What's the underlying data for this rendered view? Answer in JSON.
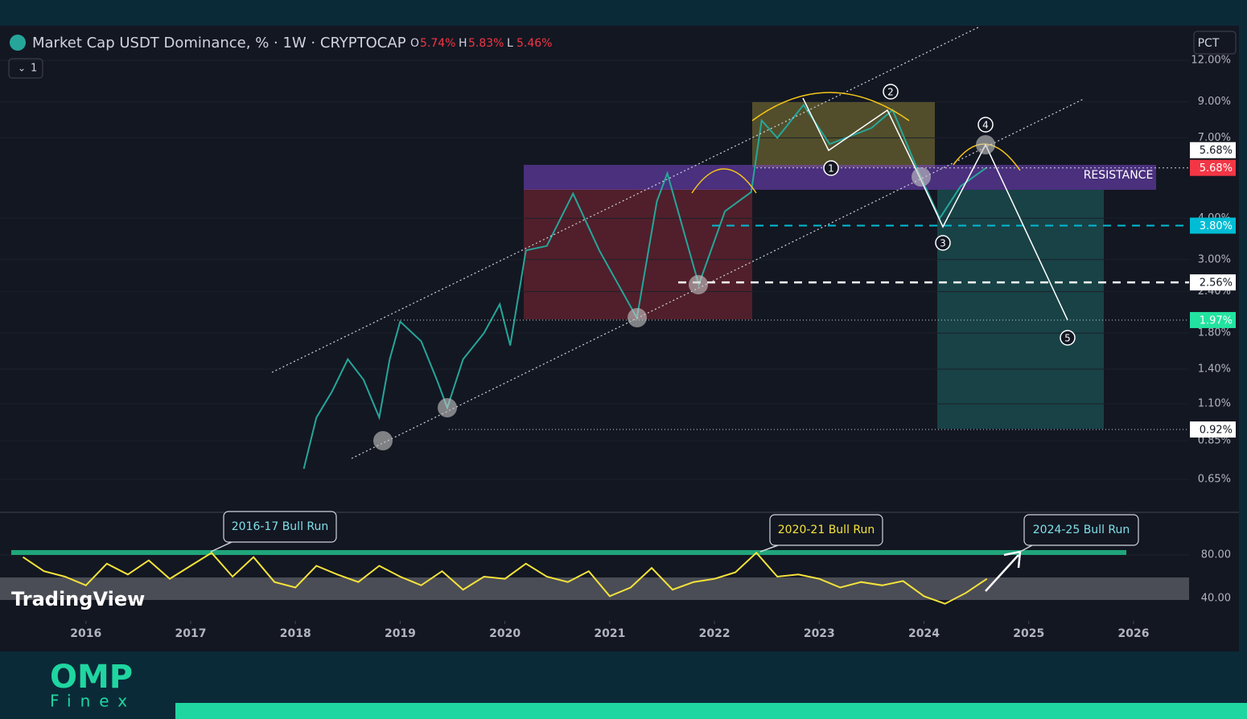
{
  "chart_data": [
    {
      "type": "line",
      "title": "Market Cap USDT Dominance, % · 1W · CRYPTOCAP",
      "ohlc": [
        [
          "O",
          "5.74%"
        ],
        [
          "H",
          "5.83%"
        ],
        [
          "L",
          "5.46%"
        ]
      ],
      "scale_button": "PCT",
      "pane_badge": "1",
      "yscale": "log",
      "color": "#26a69a",
      "x": [
        2018.08,
        2018.2,
        2018.35,
        2018.5,
        2018.65,
        2018.8,
        2018.9,
        2019.0,
        2019.2,
        2019.35,
        2019.45,
        2019.6,
        2019.8,
        2019.95,
        2020.05,
        2020.2,
        2020.4,
        2020.65,
        2020.9,
        2021.26,
        2021.45,
        2021.55,
        2021.85,
        2022.1,
        2022.35,
        2022.45,
        2022.6,
        2022.85,
        2023.1,
        2023.5,
        2023.7,
        2023.95,
        2024.15,
        2024.35,
        2024.6
      ],
      "values": [
        0.7,
        1.0,
        1.2,
        1.5,
        1.3,
        1.0,
        1.5,
        1.95,
        1.7,
        1.3,
        1.07,
        1.5,
        1.8,
        2.2,
        1.65,
        3.2,
        3.3,
        4.75,
        3.2,
        2.0,
        4.5,
        5.47,
        2.52,
        4.2,
        4.8,
        7.9,
        7.0,
        8.8,
        6.7,
        7.5,
        8.5,
        5.5,
        4.0,
        5.0,
        5.7
      ],
      "xlim": [
        2015.18,
        2026.53
      ],
      "xticks": [
        2016,
        2017,
        2018,
        2019,
        2020,
        2021,
        2022,
        2023,
        2024,
        2025,
        2026
      ],
      "ylim": [
        0.52,
        14.6
      ],
      "yticks": [
        {
          "value": 12,
          "label": "12.00%"
        },
        {
          "value": 9,
          "label": "9.00%"
        },
        {
          "value": 7,
          "label": "7.00%"
        },
        {
          "value": 4,
          "label": "4.00%"
        },
        {
          "value": 3,
          "label": "3.00%"
        },
        {
          "value": 2.4,
          "label": "2.40%"
        },
        {
          "value": 1.8,
          "label": "1.80%"
        },
        {
          "value": 1.4,
          "label": "1.40%"
        },
        {
          "value": 1.1,
          "label": "1.10%"
        },
        {
          "value": 0.85,
          "label": "0.85%"
        },
        {
          "value": 0.65,
          "label": "0.65%"
        }
      ],
      "last_price": {
        "value": 5.68,
        "label": "5.68%"
      },
      "levels": [
        {
          "value": 5.68,
          "label": "5.68%",
          "color": "#f23645"
        },
        {
          "value": 3.8,
          "label": "3.80%",
          "color": "#00bcd4"
        },
        {
          "value": 2.56,
          "label": "2.56%",
          "color": "#ffffff"
        },
        {
          "value": 1.97,
          "label": "1.97%",
          "color": "#22e3a0"
        },
        {
          "value": 0.92,
          "label": "0.92%",
          "color": "#ffffff"
        }
      ],
      "annotations": {
        "resistance": "RESISTANCE",
        "waves": [
          "1",
          "2",
          "3",
          "4",
          "5"
        ]
      }
    },
    {
      "type": "line",
      "color": "#f5e33b",
      "x": [
        2015.4,
        2015.6,
        2015.8,
        2016.0,
        2016.2,
        2016.4,
        2016.6,
        2016.8,
        2017.0,
        2017.2,
        2017.4,
        2017.6,
        2017.8,
        2018.0,
        2018.2,
        2018.4,
        2018.6,
        2018.8,
        2019.0,
        2019.2,
        2019.4,
        2019.6,
        2019.8,
        2020.0,
        2020.2,
        2020.4,
        2020.6,
        2020.8,
        2021.0,
        2021.2,
        2021.4,
        2021.6,
        2021.8,
        2022.0,
        2022.2,
        2022.4,
        2022.6,
        2022.8,
        2023.0,
        2023.2,
        2023.4,
        2023.6,
        2023.8,
        2024.0,
        2024.2,
        2024.4,
        2024.6
      ],
      "values": [
        78,
        65,
        60,
        52,
        72,
        62,
        75,
        58,
        70,
        82,
        60,
        78,
        55,
        50,
        70,
        62,
        55,
        70,
        60,
        52,
        65,
        48,
        60,
        58,
        72,
        60,
        55,
        65,
        42,
        50,
        68,
        48,
        55,
        58,
        64,
        82,
        60,
        62,
        58,
        50,
        55,
        52,
        56,
        42,
        35,
        45,
        58
      ],
      "xlim": [
        2015.18,
        2026.53
      ],
      "ylim": [
        20,
        117
      ],
      "yticks": [
        {
          "value": 80,
          "label": "80.00"
        },
        {
          "value": 40,
          "label": "40.00"
        }
      ],
      "callouts": [
        "2016-17 Bull Run",
        "2020-21 Bull Run",
        "2024-25 Bull Run"
      ],
      "watermark": "TradingView"
    }
  ],
  "branding": {
    "logo": "OMP",
    "logo_sub": "Finex"
  }
}
